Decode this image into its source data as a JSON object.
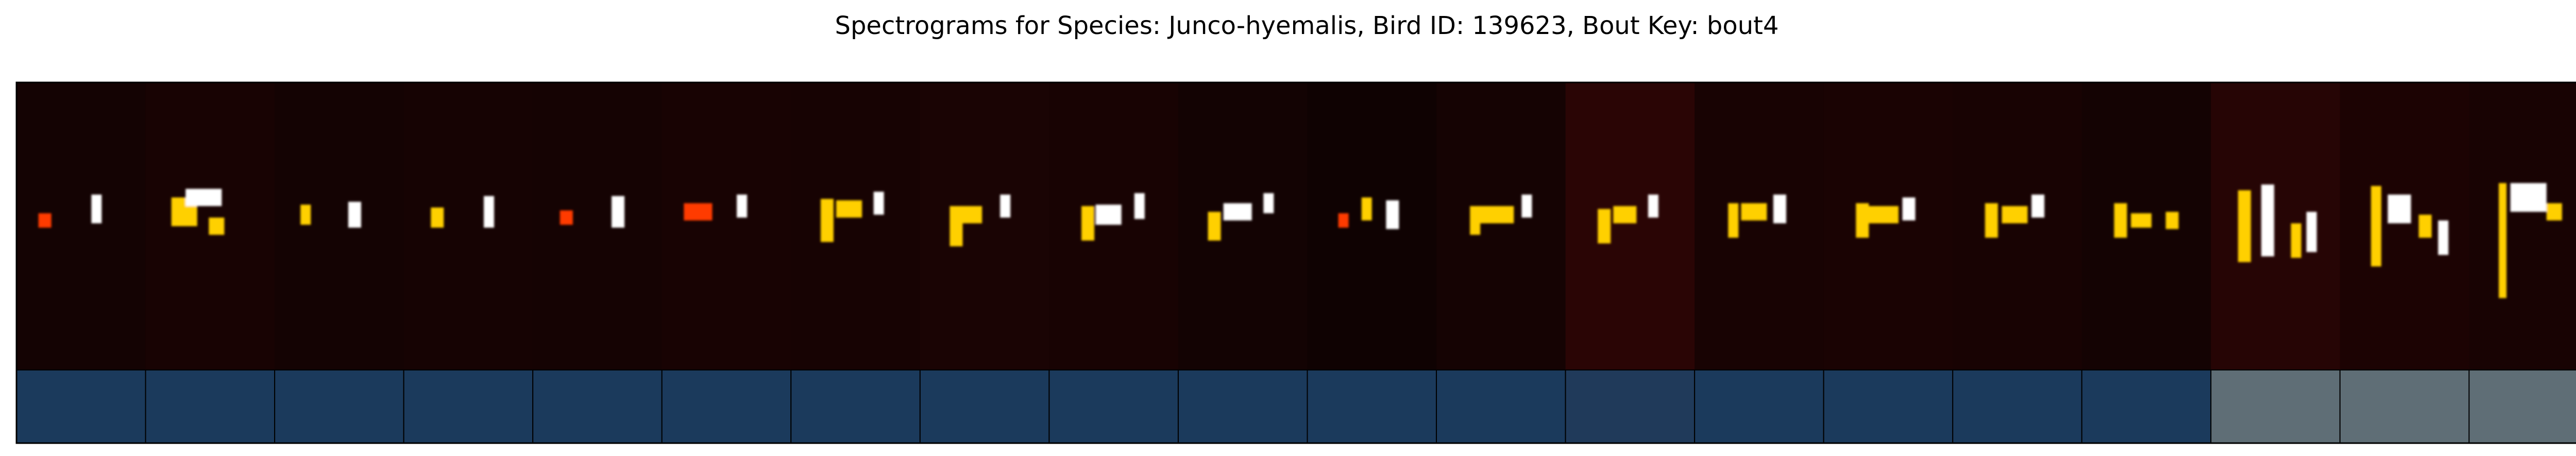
{
  "chart_data": {
    "type": "heatmap",
    "title": "Spectrograms for Species: Junco-hyemalis, Bird ID: 139623, Bout Key: bout4",
    "xlabel": "",
    "ylabel": "",
    "colormap": "hot",
    "syllable_count": 20,
    "syllables": [
      {
        "index": 1,
        "label_color": "#1b3a5c",
        "bg_color": "#140303"
      },
      {
        "index": 2,
        "label_color": "#1b3a5c",
        "bg_color": "#180303"
      },
      {
        "index": 3,
        "label_color": "#1b3a5c",
        "bg_color": "#140303"
      },
      {
        "index": 4,
        "label_color": "#1b3a5c",
        "bg_color": "#160303"
      },
      {
        "index": 5,
        "label_color": "#1b3a5c",
        "bg_color": "#150303"
      },
      {
        "index": 6,
        "label_color": "#1b3a5c",
        "bg_color": "#180303"
      },
      {
        "index": 7,
        "label_color": "#1b3a5c",
        "bg_color": "#170303"
      },
      {
        "index": 8,
        "label_color": "#1b3a5c",
        "bg_color": "#1a0404"
      },
      {
        "index": 9,
        "label_color": "#1b3a5c",
        "bg_color": "#180303"
      },
      {
        "index": 10,
        "label_color": "#1b3a5c",
        "bg_color": "#130303"
      },
      {
        "index": 11,
        "label_color": "#1b3a5c",
        "bg_color": "#0f0202"
      },
      {
        "index": 12,
        "label_color": "#1b3a5c",
        "bg_color": "#150303"
      },
      {
        "index": 13,
        "label_color": "#203a5a",
        "bg_color": "#2a0505"
      },
      {
        "index": 14,
        "label_color": "#1b3a5c",
        "bg_color": "#180303"
      },
      {
        "index": 15,
        "label_color": "#1b3a5c",
        "bg_color": "#1a0303"
      },
      {
        "index": 16,
        "label_color": "#1b3a5c",
        "bg_color": "#180303"
      },
      {
        "index": 17,
        "label_color": "#1b3a5c",
        "bg_color": "#140303"
      },
      {
        "index": 18,
        "label_color": "#5f6e76",
        "bg_color": "#260505"
      },
      {
        "index": 19,
        "label_color": "#5f6e76",
        "bg_color": "#1c0303"
      },
      {
        "index": 20,
        "label_color": "#5f6e76",
        "bg_color": "#180303"
      }
    ]
  }
}
